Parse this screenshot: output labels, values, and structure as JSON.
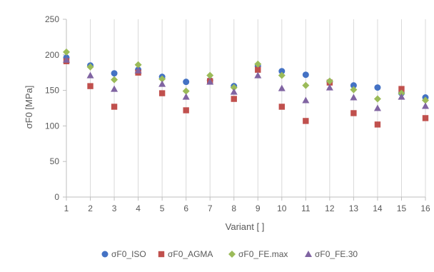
{
  "chart_data": {
    "type": "scatter",
    "title": "",
    "xlabel": "Variant [ ]",
    "ylabel": "σF0 [MPa]",
    "x": [
      1,
      2,
      3,
      4,
      5,
      6,
      7,
      8,
      9,
      10,
      11,
      12,
      13,
      14,
      15,
      16
    ],
    "xlim": [
      1,
      16
    ],
    "ylim": [
      0,
      250
    ],
    "yticks": [
      0,
      50,
      100,
      150,
      200,
      250
    ],
    "grid": "vertical",
    "legend_position": "bottom",
    "series": [
      {
        "name": "σF0_ISO",
        "color": "#4472C4",
        "marker": "circle",
        "values": [
          196,
          185,
          174,
          179,
          169,
          162,
          164,
          156,
          184,
          177,
          172,
          162,
          157,
          154,
          146,
          140
        ]
      },
      {
        "name": "σF0_AGMA",
        "color": "#C0504D",
        "marker": "square",
        "values": [
          191,
          156,
          127,
          175,
          146,
          122,
          163,
          138,
          179,
          127,
          107,
          161,
          118,
          102,
          152,
          111
        ]
      },
      {
        "name": "σF0_FE.max",
        "color": "#9BBB59",
        "marker": "diamond",
        "values": [
          204,
          183,
          165,
          186,
          166,
          149,
          171,
          154,
          187,
          171,
          157,
          163,
          151,
          138,
          146,
          136
        ]
      },
      {
        "name": "σF0_FE.30",
        "color": "#8064A2",
        "marker": "triangle",
        "values": [
          193,
          171,
          152,
          178,
          159,
          141,
          162,
          148,
          171,
          153,
          136,
          154,
          140,
          125,
          141,
          128
        ]
      }
    ]
  }
}
